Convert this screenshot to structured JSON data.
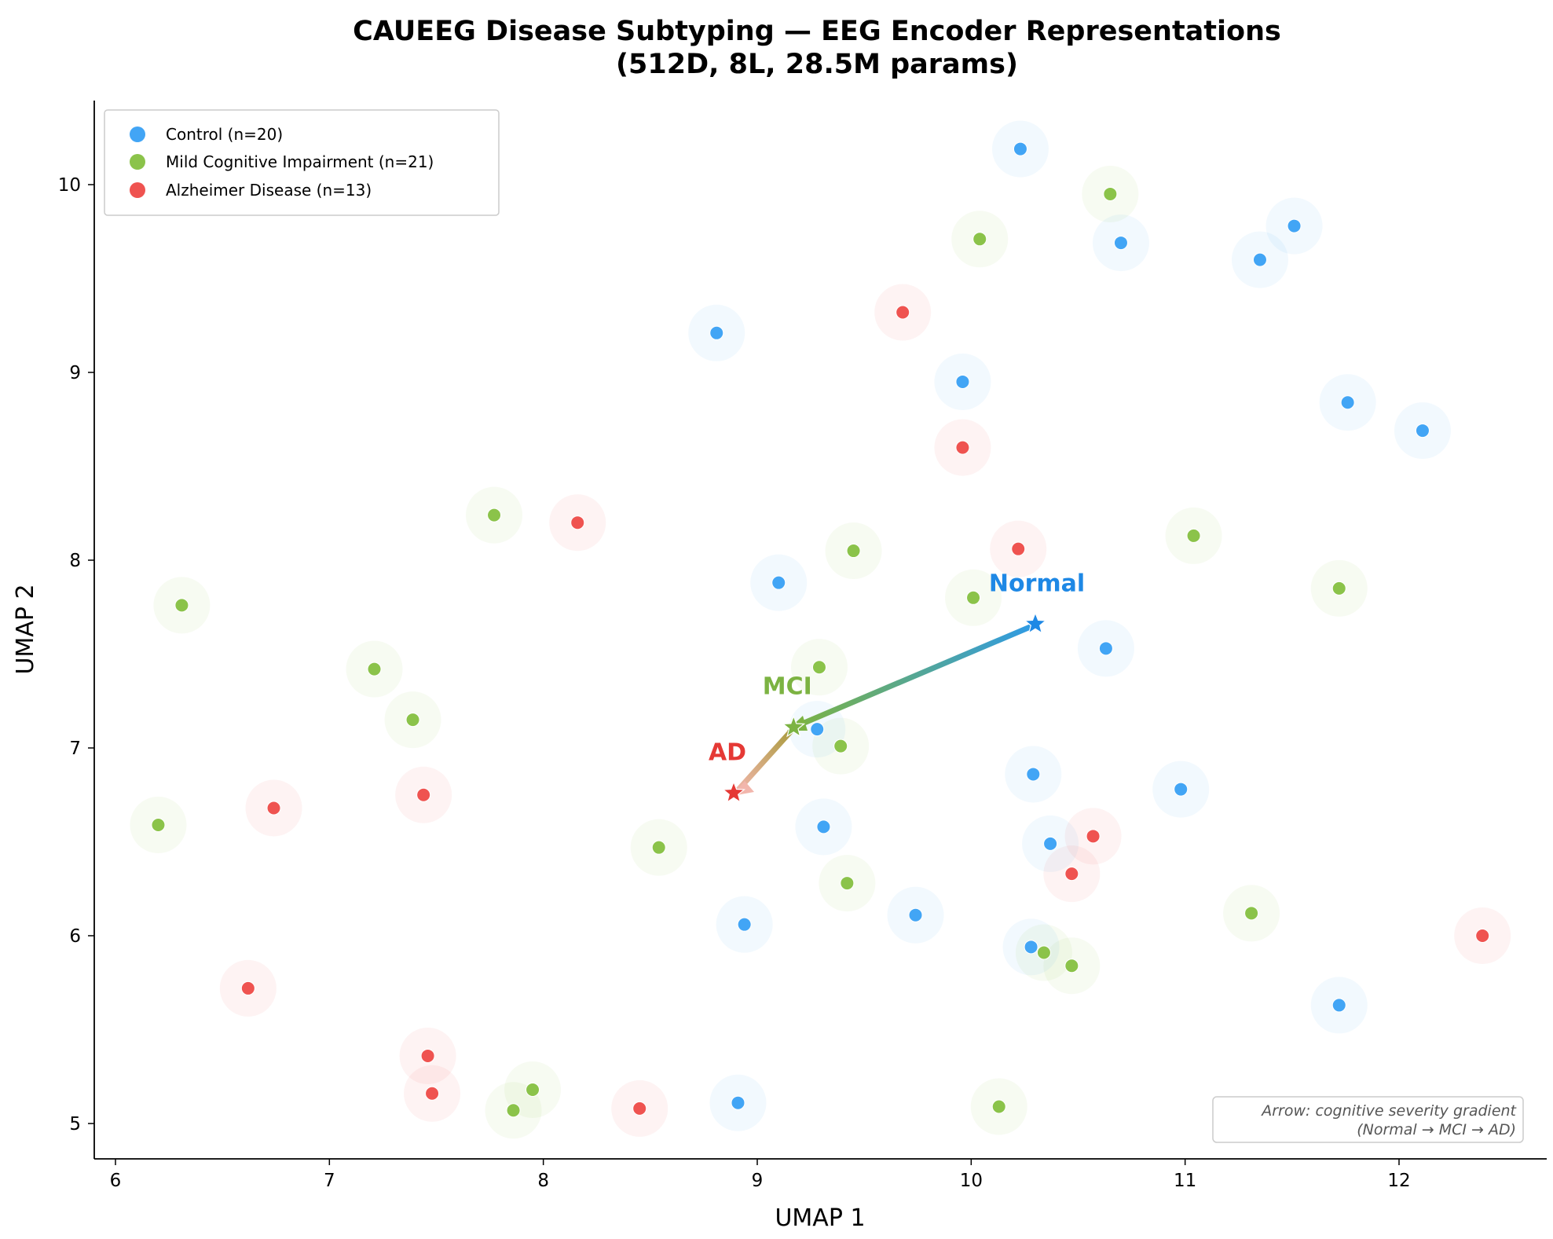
{
  "chart_data": {
    "type": "scatter",
    "title_line1": "CAUEEG Disease Subtyping — EEG Encoder Representations",
    "title_line2": "(512D, 8L, 28.5M params)",
    "xlabel": "UMAP 1",
    "ylabel": "UMAP 2",
    "xlim": [
      5.9,
      12.7
    ],
    "ylim": [
      4.82,
      10.45
    ],
    "xticks": [
      6,
      7,
      8,
      9,
      10,
      11,
      12
    ],
    "yticks": [
      5,
      6,
      7,
      8,
      9,
      10
    ],
    "grid": false,
    "legend_position": "top-left",
    "series": [
      {
        "name": "Control (n=20)",
        "color": "#42a5f5",
        "points": [
          [
            10.23,
            10.19
          ],
          [
            11.51,
            9.78
          ],
          [
            10.7,
            9.69
          ],
          [
            11.35,
            9.6
          ],
          [
            8.81,
            9.21
          ],
          [
            9.96,
            8.95
          ],
          [
            11.76,
            8.84
          ],
          [
            12.11,
            8.69
          ],
          [
            9.1,
            7.88
          ],
          [
            10.63,
            7.53
          ],
          [
            9.28,
            7.1
          ],
          [
            10.29,
            6.86
          ],
          [
            10.98,
            6.78
          ],
          [
            9.31,
            6.58
          ],
          [
            10.37,
            6.49
          ],
          [
            9.74,
            6.11
          ],
          [
            8.94,
            6.06
          ],
          [
            10.28,
            5.94
          ],
          [
            11.72,
            5.63
          ],
          [
            8.91,
            5.11
          ]
        ]
      },
      {
        "name": "Mild Cognitive Impairment (n=21)",
        "color": "#8bc34a",
        "points": [
          [
            10.65,
            9.95
          ],
          [
            10.04,
            9.71
          ],
          [
            7.77,
            8.24
          ],
          [
            9.45,
            8.05
          ],
          [
            11.04,
            8.13
          ],
          [
            6.31,
            7.76
          ],
          [
            10.01,
            7.8
          ],
          [
            11.72,
            7.85
          ],
          [
            7.21,
            7.42
          ],
          [
            9.29,
            7.43
          ],
          [
            7.39,
            7.15
          ],
          [
            9.39,
            7.01
          ],
          [
            6.2,
            6.59
          ],
          [
            8.54,
            6.47
          ],
          [
            9.42,
            6.28
          ],
          [
            11.31,
            6.12
          ],
          [
            10.34,
            5.91
          ],
          [
            10.47,
            5.84
          ],
          [
            7.95,
            5.18
          ],
          [
            7.86,
            5.07
          ],
          [
            10.13,
            5.09
          ]
        ]
      },
      {
        "name": "Alzheimer Disease (n=13)",
        "color": "#ef5350",
        "points": [
          [
            9.68,
            9.32
          ],
          [
            9.96,
            8.6
          ],
          [
            8.16,
            8.2
          ],
          [
            10.22,
            8.06
          ],
          [
            6.74,
            6.68
          ],
          [
            7.44,
            6.75
          ],
          [
            10.57,
            6.53
          ],
          [
            10.47,
            6.33
          ],
          [
            12.39,
            6.0
          ],
          [
            6.62,
            5.72
          ],
          [
            7.46,
            5.36
          ],
          [
            7.48,
            5.16
          ],
          [
            8.45,
            5.08
          ]
        ]
      }
    ],
    "centroids": [
      {
        "label": "Normal",
        "x": 10.3,
        "y": 7.66,
        "color": "#1e88e5"
      },
      {
        "label": "MCI",
        "x": 9.17,
        "y": 7.11,
        "color": "#7cb342"
      },
      {
        "label": "AD",
        "x": 8.89,
        "y": 6.76,
        "color": "#e53935"
      }
    ],
    "annotation_line1": "Arrow: cognitive severity gradient",
    "annotation_line2": "(Normal → MCI → AD)"
  }
}
